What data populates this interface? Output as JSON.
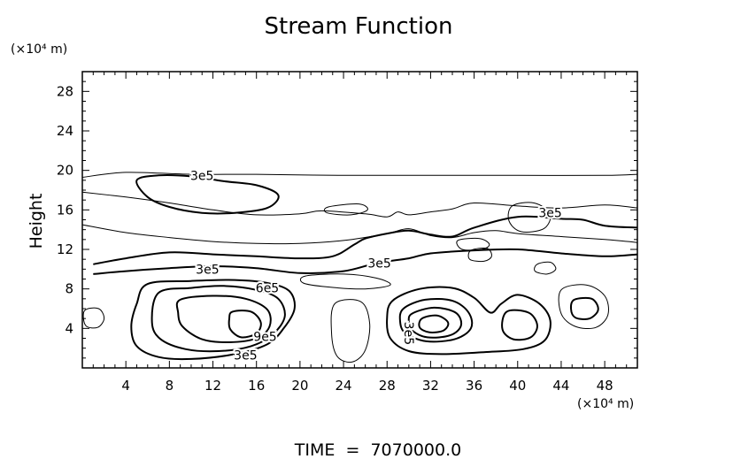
{
  "chart_data": {
    "type": "contour",
    "title": "Stream Function",
    "ylabel": "Height",
    "y_unit_label": "(×10⁴ m)",
    "x_unit_label": "(×10⁴ m)",
    "footer": "TIME  =  7070000.0",
    "xlim": [
      0,
      51
    ],
    "ylim": [
      0,
      30
    ],
    "x_ticks": [
      4,
      8,
      12,
      16,
      20,
      24,
      28,
      32,
      36,
      40,
      44,
      48
    ],
    "y_ticks": [
      4,
      8,
      12,
      16,
      20,
      24,
      28
    ],
    "contour_labels": [
      {
        "text": "3e5",
        "x": 11.0,
        "y": 19.5
      },
      {
        "text": "3e5",
        "x": 43.0,
        "y": 15.7
      },
      {
        "text": "3e5",
        "x": 11.5,
        "y": 10.0
      },
      {
        "text": "3e5",
        "x": 27.3,
        "y": 10.6
      },
      {
        "text": "6e5",
        "x": 17.0,
        "y": 8.1
      },
      {
        "text": "9e5",
        "x": 16.8,
        "y": 3.2
      },
      {
        "text": "3e5",
        "x": 15.0,
        "y": 1.3
      },
      {
        "text": "3e5",
        "x": 30.0,
        "y": 3.5,
        "rotate": 90
      }
    ],
    "contours": [
      {
        "level": "0",
        "weight": 1,
        "points": [
          [
            0,
            17.8
          ],
          [
            4,
            17.3
          ],
          [
            8,
            16.7
          ],
          [
            12,
            16
          ],
          [
            16,
            15.5
          ],
          [
            20,
            15.6
          ],
          [
            22,
            15.9
          ],
          [
            26,
            15.6
          ],
          [
            28,
            15.3
          ],
          [
            29,
            15.8
          ],
          [
            30,
            15.5
          ],
          [
            32,
            15.8
          ],
          [
            34,
            16.1
          ],
          [
            36,
            16.7
          ],
          [
            40,
            16.4
          ],
          [
            44,
            16.2
          ],
          [
            48,
            16.5
          ],
          [
            51,
            16.2
          ]
        ]
      },
      {
        "level": "0",
        "weight": 1,
        "points": [
          [
            0,
            19.3
          ],
          [
            4,
            19.8
          ],
          [
            10,
            19.6
          ],
          [
            16,
            19.6
          ],
          [
            24,
            19.5
          ],
          [
            32,
            19.5
          ],
          [
            40,
            19.5
          ],
          [
            48,
            19.5
          ],
          [
            51,
            19.6
          ]
        ]
      },
      {
        "level": "0",
        "weight": 1,
        "points": [
          [
            0,
            14.5
          ],
          [
            4,
            13.7
          ],
          [
            8,
            13.2
          ],
          [
            12,
            12.8
          ],
          [
            16,
            12.6
          ],
          [
            20,
            12.6
          ],
          [
            24,
            12.9
          ],
          [
            28,
            13.6
          ],
          [
            30,
            14.1
          ],
          [
            32,
            13.4
          ],
          [
            34,
            13.2
          ],
          [
            36,
            13.7
          ],
          [
            38,
            13.9
          ],
          [
            40,
            13.6
          ],
          [
            44,
            13.3
          ],
          [
            48,
            13.0
          ],
          [
            51,
            12.7
          ]
        ]
      },
      {
        "level": "3e5",
        "weight": 2,
        "points": [
          [
            1,
            10.5
          ],
          [
            4,
            11.1
          ],
          [
            8,
            11.7
          ],
          [
            12,
            11.5
          ],
          [
            16,
            11.3
          ],
          [
            20,
            11.1
          ],
          [
            23,
            11.3
          ],
          [
            25,
            12.5
          ],
          [
            26,
            13.1
          ],
          [
            28,
            13.6
          ],
          [
            30,
            13.9
          ],
          [
            32,
            13.5
          ],
          [
            34,
            13.3
          ],
          [
            36,
            14.2
          ],
          [
            40,
            15.3
          ],
          [
            44,
            15.1
          ],
          [
            46,
            15.0
          ],
          [
            48,
            14.4
          ],
          [
            51,
            14.2
          ]
        ]
      },
      {
        "level": "3e5",
        "weight": 2,
        "closed": true,
        "points": [
          [
            5,
            19.0
          ],
          [
            7,
            19.5
          ],
          [
            10,
            19.4
          ],
          [
            13,
            18.9
          ],
          [
            16,
            18.5
          ],
          [
            18,
            17.5
          ],
          [
            17,
            16.2
          ],
          [
            14,
            15.7
          ],
          [
            11,
            15.7
          ],
          [
            8,
            16.3
          ],
          [
            6,
            17.3
          ]
        ]
      },
      {
        "level": "3e5",
        "weight": 2,
        "points": [
          [
            1,
            9.5
          ],
          [
            4,
            9.8
          ],
          [
            8,
            10.1
          ],
          [
            12,
            10.3
          ],
          [
            16,
            10.1
          ],
          [
            20,
            9.6
          ],
          [
            24,
            9.8
          ],
          [
            27,
            10.6
          ],
          [
            30,
            11.1
          ],
          [
            32,
            11.6
          ],
          [
            36,
            11.9
          ],
          [
            40,
            12.0
          ],
          [
            44,
            11.6
          ],
          [
            48,
            11.3
          ],
          [
            51,
            11.5
          ]
        ]
      },
      {
        "level": "3e5",
        "weight": 2,
        "closed": true,
        "points": [
          [
            6,
            8.5
          ],
          [
            10,
            8.8
          ],
          [
            14,
            8.9
          ],
          [
            17,
            8.6
          ],
          [
            19,
            7.8
          ],
          [
            19.5,
            6
          ],
          [
            18.5,
            4
          ],
          [
            17,
            2.4
          ],
          [
            14,
            1.4
          ],
          [
            10,
            0.9
          ],
          [
            7,
            1.1
          ],
          [
            5,
            2.2
          ],
          [
            4.5,
            4.2
          ],
          [
            5,
            6.5
          ]
        ]
      },
      {
        "level": "6e5",
        "weight": 2,
        "closed": true,
        "points": [
          [
            7,
            7.6
          ],
          [
            10,
            8.1
          ],
          [
            13,
            8.3
          ],
          [
            16,
            7.9
          ],
          [
            18,
            7.0
          ],
          [
            18.6,
            5.2
          ],
          [
            17.5,
            3.4
          ],
          [
            15.5,
            2.2
          ],
          [
            12.5,
            1.7
          ],
          [
            9.5,
            1.9
          ],
          [
            7.2,
            2.9
          ],
          [
            6.4,
            4.6
          ]
        ]
      },
      {
        "level": "9e5",
        "weight": 2,
        "closed": true,
        "points": [
          [
            9,
            6.9
          ],
          [
            12,
            7.3
          ],
          [
            15,
            7.0
          ],
          [
            17,
            5.9
          ],
          [
            17.2,
            4.2
          ],
          [
            16,
            3.0
          ],
          [
            13.5,
            2.6
          ],
          [
            11,
            2.9
          ],
          [
            9.2,
            4.2
          ],
          [
            8.8,
            5.6
          ]
        ]
      },
      {
        "level": "1.2e6",
        "weight": 2,
        "closed": true,
        "points": [
          [
            13.8,
            5.7
          ],
          [
            15.5,
            5.7
          ],
          [
            16.4,
            4.6
          ],
          [
            16.0,
            3.5
          ],
          [
            14.6,
            3.1
          ],
          [
            13.6,
            3.9
          ],
          [
            13.5,
            5.0
          ]
        ]
      },
      {
        "level": "3e5",
        "weight": 2,
        "closed": true,
        "points": [
          [
            28.5,
            6.8
          ],
          [
            31,
            8.0
          ],
          [
            34,
            8.1
          ],
          [
            36,
            7.1
          ],
          [
            37.5,
            5.6
          ],
          [
            38.5,
            6.5
          ],
          [
            40,
            7.4
          ],
          [
            42,
            6.5
          ],
          [
            43,
            4.8
          ],
          [
            42.5,
            2.8
          ],
          [
            40.5,
            1.9
          ],
          [
            37,
            1.6
          ],
          [
            33,
            1.4
          ],
          [
            30,
            1.7
          ],
          [
            28.3,
            3.0
          ],
          [
            28.0,
            5.0
          ]
        ]
      },
      {
        "level": "6e5",
        "weight": 2,
        "closed": true,
        "points": [
          [
            29.5,
            6.0
          ],
          [
            31.5,
            6.9
          ],
          [
            34,
            6.8
          ],
          [
            35.5,
            5.6
          ],
          [
            35.7,
            4.0
          ],
          [
            34.2,
            2.9
          ],
          [
            31.6,
            2.7
          ],
          [
            29.7,
            3.5
          ],
          [
            29.2,
            4.7
          ]
        ]
      },
      {
        "level": "9e5",
        "weight": 2,
        "closed": true,
        "points": [
          [
            30.3,
            5.5
          ],
          [
            32.3,
            6.1
          ],
          [
            34.3,
            5.6
          ],
          [
            34.8,
            4.3
          ],
          [
            33.8,
            3.3
          ],
          [
            31.7,
            3.1
          ],
          [
            30.3,
            3.8
          ],
          [
            30.0,
            4.7
          ]
        ]
      },
      {
        "level": "1.2e6",
        "weight": 2,
        "closed": true,
        "points": [
          [
            31.2,
            5.0
          ],
          [
            32.6,
            5.3
          ],
          [
            33.6,
            4.6
          ],
          [
            33.2,
            3.8
          ],
          [
            31.9,
            3.6
          ],
          [
            31.0,
            4.1
          ]
        ]
      },
      {
        "level": "6e5",
        "weight": 2,
        "closed": true,
        "points": [
          [
            39.0,
            5.7
          ],
          [
            41.0,
            5.6
          ],
          [
            41.8,
            4.3
          ],
          [
            41.2,
            3.1
          ],
          [
            39.6,
            2.9
          ],
          [
            38.6,
            3.9
          ]
        ]
      },
      {
        "level": "3e5",
        "weight": 1,
        "closed": true,
        "points": [
          [
            44.0,
            7.9
          ],
          [
            46.3,
            8.4
          ],
          [
            48.0,
            7.3
          ],
          [
            48.3,
            5.4
          ],
          [
            47.2,
            4.1
          ],
          [
            45.3,
            4.2
          ],
          [
            44.0,
            5.5
          ]
        ]
      },
      {
        "level": "6e5",
        "weight": 2,
        "closed": true,
        "points": [
          [
            45.2,
            6.9
          ],
          [
            46.8,
            7.0
          ],
          [
            47.4,
            5.9
          ],
          [
            46.6,
            5.0
          ],
          [
            45.3,
            5.1
          ],
          [
            44.9,
            6.0
          ]
        ]
      },
      {
        "level": "3e5",
        "weight": 1,
        "closed": true,
        "points": [
          [
            0.2,
            5.8
          ],
          [
            1.5,
            6.0
          ],
          [
            2.0,
            5.0
          ],
          [
            1.4,
            4.1
          ],
          [
            0.3,
            4.3
          ]
        ]
      },
      {
        "level": "3e5",
        "weight": 1,
        "closed": true,
        "points": [
          [
            23.2,
            6.5
          ],
          [
            25.6,
            6.7
          ],
          [
            26.4,
            4.5
          ],
          [
            26.0,
            1.8
          ],
          [
            24.8,
            0.6
          ],
          [
            23.4,
            1.2
          ],
          [
            22.9,
            3.6
          ]
        ]
      },
      {
        "level": "3e5",
        "weight": 1,
        "closed": true,
        "points": [
          [
            39.5,
            16.4
          ],
          [
            41.5,
            16.7
          ],
          [
            43.0,
            15.6
          ],
          [
            42.4,
            14.1
          ],
          [
            40.3,
            13.8
          ],
          [
            39.2,
            14.9
          ]
        ]
      },
      {
        "level": "3e5",
        "weight": 1,
        "closed": true,
        "points": [
          [
            35.7,
            11.9
          ],
          [
            37.2,
            12.1
          ],
          [
            37.6,
            11.3
          ],
          [
            36.9,
            10.8
          ],
          [
            35.6,
            11.0
          ]
        ]
      },
      {
        "level": "3e5",
        "weight": 1,
        "closed": true,
        "points": [
          [
            22.6,
            16.3
          ],
          [
            25.4,
            16.6
          ],
          [
            26.2,
            16.0
          ],
          [
            24.7,
            15.5
          ],
          [
            22.5,
            15.7
          ]
        ]
      },
      {
        "level": "0",
        "weight": 1,
        "closed": true,
        "points": [
          [
            34.5,
            12.9
          ],
          [
            36.5,
            13.1
          ],
          [
            37.4,
            12.5
          ],
          [
            36.7,
            12.0
          ],
          [
            34.9,
            12.0
          ]
        ]
      },
      {
        "level": "0",
        "weight": 1,
        "closed": true,
        "points": [
          [
            41.8,
            10.5
          ],
          [
            43.0,
            10.7
          ],
          [
            43.5,
            10.0
          ],
          [
            42.7,
            9.5
          ],
          [
            41.6,
            9.8
          ]
        ]
      },
      {
        "level": "0",
        "weight": 1,
        "closed": true,
        "points": [
          [
            20.5,
            9.3
          ],
          [
            24,
            9.5
          ],
          [
            27,
            9.1
          ],
          [
            28.3,
            8.4
          ],
          [
            26,
            8.0
          ],
          [
            22.5,
            8.2
          ],
          [
            20.3,
            8.6
          ]
        ]
      }
    ]
  }
}
